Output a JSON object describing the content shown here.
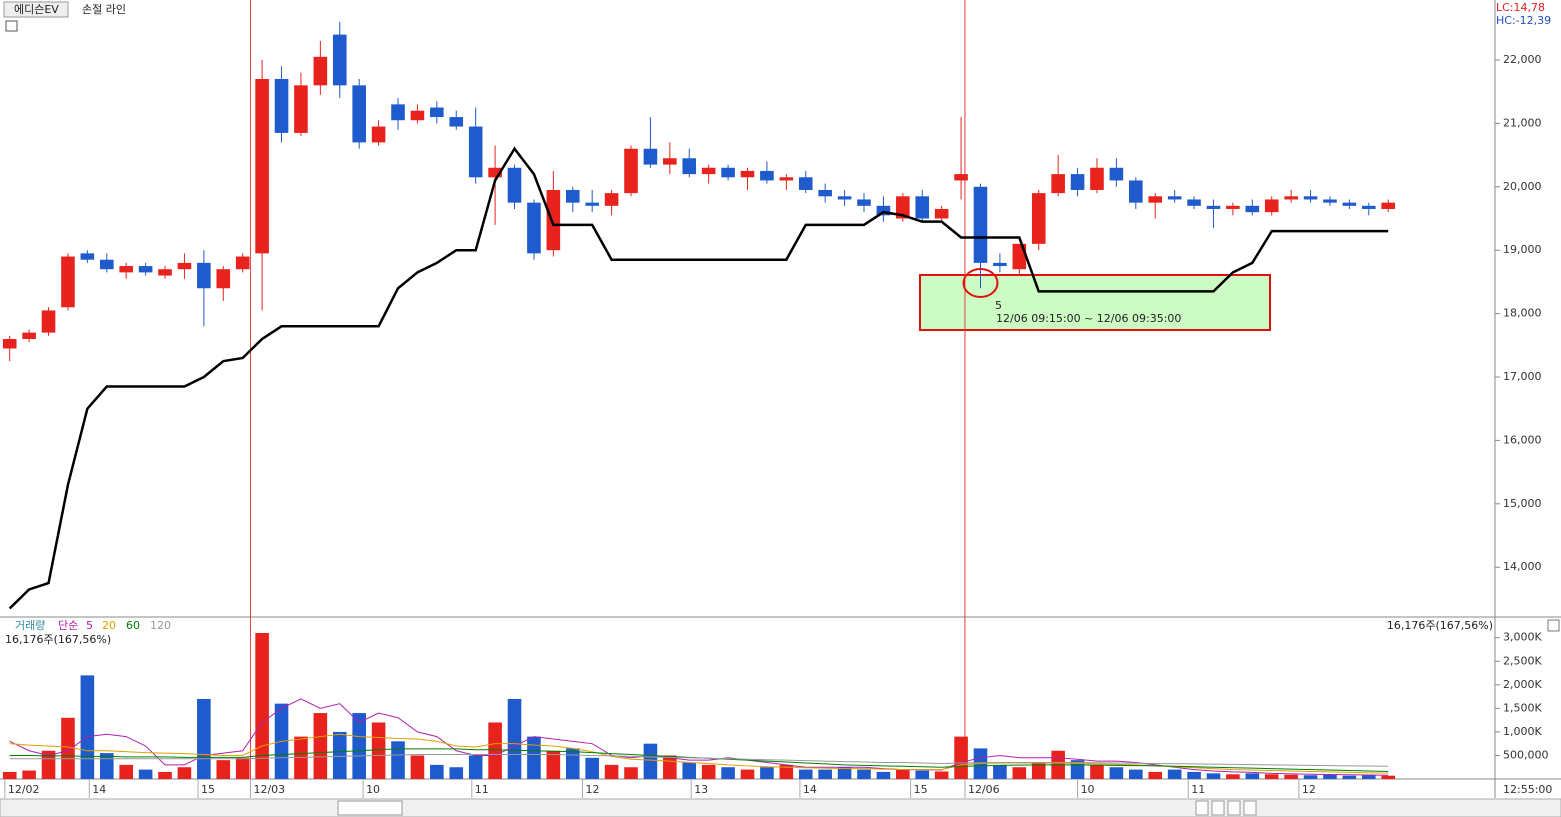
{
  "chart_data": [
    {
      "type": "candlestick",
      "title": "에디슨EV",
      "annotations": [
        "LC:14,78",
        "HC:-12,39",
        "5",
        "12/06 09:15:00 ~ 12/06 09:35:00"
      ],
      "up_color": "#e8221c",
      "down_color": "#1f5bcc",
      "xlim": [
        -0.5,
        76.5
      ],
      "xticks": [
        {
          "value": -0.25,
          "label": "12/02"
        },
        {
          "value": 4.1,
          "label": "14"
        },
        {
          "value": 9.7,
          "label": "15"
        },
        {
          "value": 12.4,
          "label": "12/03"
        },
        {
          "value": 18.2,
          "label": "10"
        },
        {
          "value": 23.8,
          "label": "11"
        },
        {
          "value": 29.5,
          "label": "12"
        },
        {
          "value": 35.1,
          "label": "13"
        },
        {
          "value": 40.7,
          "label": "14"
        },
        {
          "value": 46.4,
          "label": "15"
        },
        {
          "value": 49.2,
          "label": "12/06"
        },
        {
          "value": 55,
          "label": "10"
        },
        {
          "value": 60.7,
          "label": "11"
        },
        {
          "value": 66.4,
          "label": "12"
        }
      ],
      "ylim": [
        13215,
        22946
      ],
      "yticks": [
        {
          "value": 14000,
          "label": "14,000"
        },
        {
          "value": 15000,
          "label": "15,000"
        },
        {
          "value": 16000,
          "label": "16,000"
        },
        {
          "value": 17000,
          "label": "17,000"
        },
        {
          "value": 18000,
          "label": "18,000"
        },
        {
          "value": 19000,
          "label": "19,000"
        },
        {
          "value": 20000,
          "label": "20,000"
        },
        {
          "value": 21000,
          "label": "21,000"
        },
        {
          "value": 22000,
          "label": "22,000"
        }
      ],
      "open": [
        17450,
        17600,
        17700,
        18100,
        18950,
        18850,
        18650,
        18750,
        18600,
        18700,
        18800,
        18400,
        18700,
        18950,
        21700,
        20850,
        21600,
        22400,
        21600,
        20700,
        21300,
        21050,
        21250,
        21100,
        20950,
        20150,
        20300,
        19750,
        19000,
        19950,
        19750,
        19700,
        19900,
        20600,
        20350,
        20450,
        20200,
        20300,
        20150,
        20250,
        20100,
        20150,
        19950,
        19850,
        19800,
        19700,
        19500,
        19850,
        19500,
        20100,
        20000,
        18800,
        18700,
        19100,
        19900,
        20200,
        19950,
        20300,
        20100,
        19750,
        19850,
        19800,
        19700,
        19650,
        19700,
        19600,
        19800,
        19850,
        19800,
        19750,
        19700,
        19650
      ],
      "high": [
        17650,
        17750,
        18100,
        18950,
        19000,
        18950,
        18800,
        18800,
        18750,
        18950,
        19000,
        18750,
        18950,
        22000,
        21900,
        21800,
        22300,
        22600,
        21700,
        21050,
        21400,
        21300,
        21350,
        21200,
        21250,
        20650,
        20350,
        19800,
        20250,
        20000,
        19950,
        19950,
        20650,
        21100,
        20700,
        20600,
        20350,
        20350,
        20300,
        20400,
        20200,
        20250,
        20050,
        19950,
        19900,
        19850,
        19900,
        19950,
        19700,
        21100,
        20050,
        18950,
        19100,
        19950,
        20500,
        20300,
        20450,
        20450,
        20150,
        19900,
        19950,
        19850,
        19800,
        19750,
        19800,
        19850,
        19950,
        19950,
        19850,
        19800,
        19750,
        19800
      ],
      "low": [
        17250,
        17550,
        17650,
        18050,
        18800,
        18650,
        18550,
        18600,
        18550,
        18550,
        17800,
        18200,
        18650,
        18050,
        20700,
        20800,
        21450,
        21400,
        20600,
        20650,
        20900,
        21000,
        21000,
        20900,
        20050,
        19400,
        19650,
        18850,
        18900,
        19600,
        19600,
        19550,
        19850,
        20300,
        20200,
        20150,
        20050,
        20100,
        19950,
        20050,
        19950,
        19900,
        19750,
        19700,
        19600,
        19450,
        19450,
        19450,
        19450,
        19800,
        18400,
        18650,
        18600,
        19000,
        19850,
        19850,
        19900,
        20000,
        19650,
        19500,
        19750,
        19650,
        19350,
        19550,
        19550,
        19550,
        19750,
        19750,
        19700,
        19650,
        19550,
        19600
      ],
      "close": [
        17600,
        17700,
        18050,
        18900,
        18850,
        18700,
        18750,
        18650,
        18700,
        18800,
        18400,
        18700,
        18900,
        21700,
        20850,
        21600,
        22050,
        21600,
        20700,
        20950,
        21050,
        21200,
        21100,
        20950,
        20150,
        20300,
        19750,
        18950,
        19950,
        19750,
        19700,
        19900,
        20600,
        20350,
        20450,
        20200,
        20300,
        20150,
        20250,
        20100,
        20150,
        19950,
        19850,
        19800,
        19700,
        19550,
        19850,
        19500,
        19650,
        20200,
        18800,
        18750,
        19100,
        19900,
        20200,
        19950,
        20300,
        20100,
        19750,
        19850,
        19800,
        19700,
        19650,
        19700,
        19600,
        19800,
        19850,
        19800,
        19750,
        19700,
        19650,
        19750
      ],
      "series": [
        {
          "name": "손절 라인",
          "color": "#000000",
          "values": [
            13350,
            13650,
            13750,
            15300,
            16500,
            16850,
            16850,
            16850,
            16850,
            16850,
            17000,
            17250,
            17300,
            17600,
            17800,
            17800,
            17800,
            17800,
            17800,
            17800,
            18400,
            18650,
            18800,
            19000,
            19000,
            20100,
            20600,
            20200,
            19400,
            19400,
            19400,
            18850,
            18850,
            18850,
            18850,
            18850,
            18850,
            18850,
            18850,
            18850,
            18850,
            19400,
            19400,
            19400,
            19400,
            19600,
            19550,
            19450,
            19450,
            19200,
            19200,
            19200,
            19200,
            18350,
            18350,
            18350,
            18350,
            18350,
            18350,
            18350,
            18350,
            18350,
            18350,
            18650,
            18800,
            19300,
            19300,
            19300,
            19300,
            19300,
            19300,
            19300
          ]
        }
      ]
    },
    {
      "type": "bar",
      "title": "거래량",
      "legend_title": "단순",
      "current_value_label": "16,176주(167,56%)",
      "ylim": [
        0,
        3376
      ],
      "yticks": [
        {
          "value": 500,
          "label": "500,000"
        },
        {
          "value": 1000,
          "label": "1,000K"
        },
        {
          "value": 1500,
          "label": "1,500K"
        },
        {
          "value": 2000,
          "label": "2,000K"
        },
        {
          "value": 2500,
          "label": "2,500K"
        },
        {
          "value": 3000,
          "label": "3,000K"
        }
      ],
      "values": [
        150,
        180,
        600,
        1300,
        2200,
        550,
        300,
        200,
        150,
        250,
        1700,
        400,
        450,
        3100,
        1600,
        900,
        1400,
        1000,
        1400,
        1200,
        800,
        500,
        300,
        250,
        500,
        1200,
        1700,
        900,
        600,
        650,
        450,
        300,
        250,
        750,
        500,
        350,
        300,
        250,
        200,
        250,
        300,
        200,
        200,
        250,
        200,
        150,
        200,
        180,
        160,
        900,
        650,
        300,
        250,
        350,
        600,
        400,
        300,
        250,
        200,
        150,
        200,
        150,
        120,
        100,
        120,
        100,
        90,
        80,
        90,
        70,
        80,
        70
      ],
      "series": [
        {
          "name": "5",
          "color": "#b020b0",
          "values": [
            800,
            600,
            500,
            600,
            900,
            950,
            900,
            700,
            300,
            300,
            500,
            550,
            600,
            1200,
            1500,
            1700,
            1500,
            1600,
            1200,
            1400,
            1300,
            1000,
            900,
            600,
            500,
            500,
            700,
            900,
            850,
            800,
            750,
            500,
            450,
            500,
            450,
            400,
            400,
            450,
            400,
            350,
            300,
            250,
            250,
            250,
            250,
            220,
            200,
            200,
            190,
            350,
            450,
            500,
            450,
            450,
            450,
            420,
            380,
            380,
            350,
            300,
            250,
            200,
            170,
            150,
            140,
            120,
            110,
            100,
            95,
            90,
            85,
            80
          ]
        },
        {
          "name": "20",
          "color": "#e0a000",
          "values": [
            750,
            720,
            700,
            680,
            600,
            600,
            580,
            560,
            550,
            540,
            520,
            500,
            500,
            700,
            800,
            850,
            900,
            950,
            900,
            880,
            860,
            850,
            800,
            700,
            680,
            750,
            750,
            720,
            700,
            650,
            580,
            480,
            420,
            400,
            380,
            350,
            330,
            300,
            280,
            260,
            250,
            240,
            230,
            220,
            220,
            210,
            200,
            200,
            200,
            300,
            330,
            340,
            340,
            340,
            340,
            330,
            320,
            310,
            300,
            280,
            260,
            240,
            220,
            200,
            190,
            180,
            170,
            160,
            150,
            140,
            130,
            125
          ]
        },
        {
          "name": "60",
          "color": "#008000",
          "values": [
            500,
            500,
            490,
            490,
            480,
            480,
            470,
            470,
            470,
            460,
            460,
            460,
            460,
            500,
            520,
            540,
            560,
            580,
            600,
            620,
            640,
            640,
            640,
            640,
            620,
            620,
            610,
            600,
            590,
            580,
            560,
            540,
            520,
            500,
            480,
            460,
            440,
            420,
            400,
            380,
            360,
            340,
            320,
            300,
            290,
            280,
            270,
            260,
            250,
            270,
            280,
            290,
            295,
            300,
            300,
            300,
            295,
            290,
            285,
            280,
            270,
            260,
            250,
            240,
            230,
            220,
            210,
            200,
            190,
            180,
            170,
            160
          ]
        },
        {
          "name": "120",
          "color": "#999999",
          "values": [
            430,
            430,
            430,
            430,
            430,
            430,
            430,
            430,
            430,
            430,
            430,
            430,
            430,
            440,
            450,
            460,
            470,
            480,
            490,
            500,
            510,
            520,
            520,
            520,
            520,
            520,
            520,
            520,
            520,
            510,
            500,
            490,
            480,
            470,
            460,
            450,
            440,
            430,
            420,
            410,
            400,
            390,
            380,
            370,
            360,
            350,
            350,
            340,
            330,
            340,
            345,
            350,
            350,
            350,
            350,
            350,
            345,
            340,
            335,
            330,
            325,
            320,
            315,
            310,
            305,
            300,
            295,
            290,
            285,
            280,
            275,
            270
          ]
        }
      ]
    }
  ],
  "status": {
    "time": "12:55:00"
  }
}
